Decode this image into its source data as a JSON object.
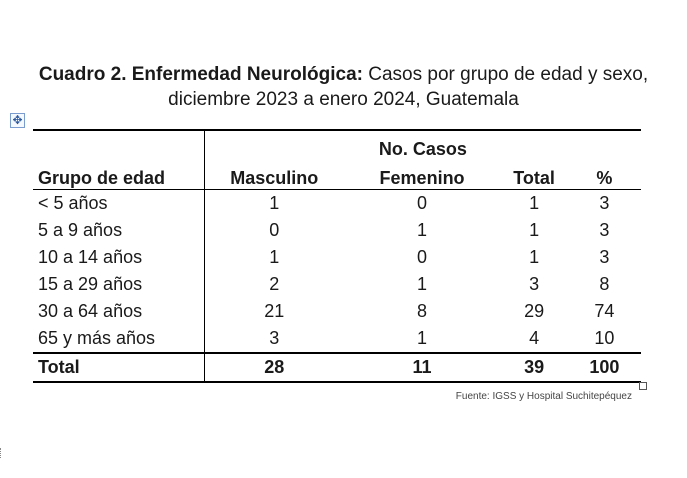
{
  "title": {
    "bold": "Cuadro 2. Enfermedad Neurológica:",
    "line1_rest": " Casos por grupo de edad y sexo,",
    "line2": "diciembre 2023 a enero 2024, Guatemala"
  },
  "table": {
    "group_header": "No. Casos",
    "headers": [
      "Grupo de edad",
      "Masculino",
      "Femenino",
      "Total",
      "%"
    ],
    "rows": [
      [
        "< 5 años",
        "1",
        "0",
        "1",
        "3"
      ],
      [
        "5 a 9 años",
        "0",
        "1",
        "1",
        "3"
      ],
      [
        "10 a 14 años",
        "1",
        "0",
        "1",
        "3"
      ],
      [
        "15 a 29 años",
        "2",
        "1",
        "3",
        "8"
      ],
      [
        "30 a 64 años",
        "21",
        "8",
        "29",
        "74"
      ],
      [
        "65 y más años",
        "3",
        "1",
        "4",
        "10"
      ]
    ],
    "total": [
      "Total",
      "28",
      "11",
      "39",
      "100"
    ]
  },
  "source": "Fuente: IGSS y Hospital Suchitepéquez"
}
